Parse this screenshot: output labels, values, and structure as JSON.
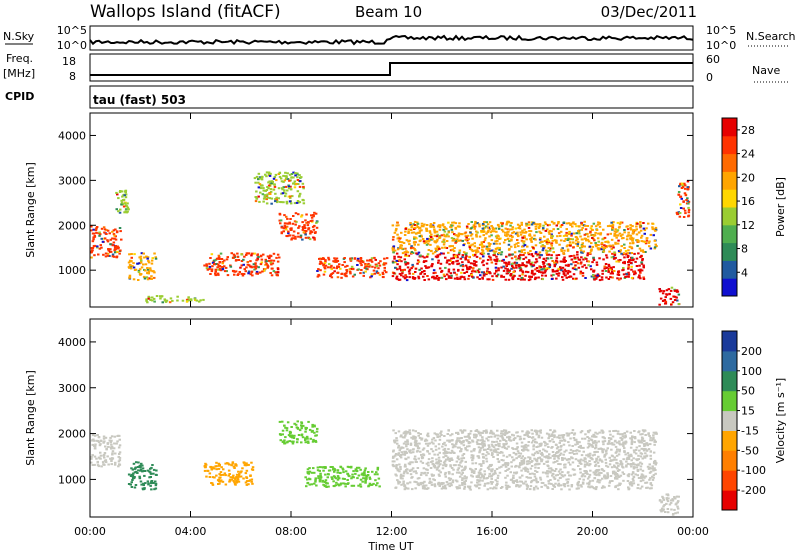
{
  "header": {
    "station": "Wallops Island (fitACF)",
    "beam": "Beam 10",
    "date": "03/Dec/2011"
  },
  "panels": {
    "nsky": {
      "label": "N.Sky",
      "tick_top": "10^5",
      "tick_bottom": "10^0",
      "right_label": "N.Search",
      "right_tick_top": "10^5",
      "right_tick_bottom": "10^0"
    },
    "freq": {
      "label_top": "Freq.",
      "label_units": "[MHz]",
      "tick_top": "18",
      "tick_bottom": "8",
      "right_label": "Nave",
      "right_tick_top": "60",
      "right_tick_bottom": "0"
    },
    "cpid": {
      "label": "CPID",
      "mode": "tau (fast) 503"
    }
  },
  "chart_data": [
    {
      "type": "heatmap",
      "title": "",
      "xlabel": "Time UT",
      "ylabel": "Slant Range [km]",
      "xlim": [
        0,
        24
      ],
      "ylim": [
        180,
        4500
      ],
      "x_ticks": [
        "00:00",
        "04:00",
        "08:00",
        "12:00",
        "16:00",
        "20:00",
        "00:00"
      ],
      "y_ticks": [
        "1000",
        "2000",
        "3000",
        "4000"
      ],
      "colorbar": {
        "label": "Power [dB]",
        "ticks": [
          "4",
          "8",
          "12",
          "16",
          "20",
          "24",
          "28"
        ],
        "range": [
          0,
          30
        ],
        "colors": [
          "#1010d0",
          "#205aa0",
          "#2e8b57",
          "#4fae4f",
          "#9acd32",
          "#ffd700",
          "#ffa500",
          "#ff6a00",
          "#ff3300",
          "#e60000"
        ]
      },
      "regions": [
        {
          "t0": 0.0,
          "t1": 1.2,
          "r0": 1300,
          "r1": 2000,
          "value": 24
        },
        {
          "t0": 1.0,
          "t1": 1.5,
          "r0": 2300,
          "r1": 2800,
          "value": 12
        },
        {
          "t0": 1.5,
          "t1": 2.6,
          "r0": 800,
          "r1": 1400,
          "value": 20
        },
        {
          "t0": 2.2,
          "t1": 4.5,
          "r0": 300,
          "r1": 450,
          "value": 14
        },
        {
          "t0": 4.5,
          "t1": 7.5,
          "r0": 900,
          "r1": 1400,
          "value": 25
        },
        {
          "t0": 6.5,
          "t1": 8.5,
          "r0": 2500,
          "r1": 3200,
          "value": 12
        },
        {
          "t0": 7.5,
          "t1": 9.0,
          "r0": 1700,
          "r1": 2300,
          "value": 24
        },
        {
          "t0": 9.0,
          "t1": 11.8,
          "r0": 850,
          "r1": 1300,
          "value": 24
        },
        {
          "t0": 12.0,
          "t1": 22.0,
          "r0": 800,
          "r1": 1400,
          "value": 28
        },
        {
          "t0": 12.0,
          "t1": 22.5,
          "r0": 1400,
          "r1": 2100,
          "value": 18
        },
        {
          "t0": 22.6,
          "t1": 23.4,
          "r0": 250,
          "r1": 650,
          "value": 28
        },
        {
          "t0": 23.3,
          "t1": 23.8,
          "r0": 2200,
          "r1": 3000,
          "value": 24
        }
      ]
    },
    {
      "type": "heatmap",
      "title": "",
      "xlabel": "Time UT",
      "ylabel": "Slant Range [km]",
      "xlim": [
        0,
        24
      ],
      "ylim": [
        180,
        4500
      ],
      "x_ticks": [
        "00:00",
        "04:00",
        "08:00",
        "12:00",
        "16:00",
        "20:00",
        "00:00"
      ],
      "y_ticks": [
        "1000",
        "2000",
        "3000",
        "4000"
      ],
      "colorbar": {
        "label": "Velocity [m s⁻¹]",
        "ticks": [
          "200",
          "100",
          "50",
          "15",
          "-15",
          "-50",
          "-100",
          "-200"
        ],
        "colors": [
          "#1a3a9a",
          "#2e6aa0",
          "#2e8b57",
          "#66cc33",
          "#c8c8c0",
          "#ffa500",
          "#ff7f00",
          "#ff4500",
          "#e60000"
        ]
      },
      "regions": [
        {
          "t0": 0.0,
          "t1": 1.2,
          "r0": 1300,
          "r1": 2000,
          "value": "~0"
        },
        {
          "t0": 1.5,
          "t1": 2.6,
          "r0": 800,
          "r1": 1400,
          "value": 50
        },
        {
          "t0": 4.5,
          "t1": 6.5,
          "r0": 900,
          "r1": 1400,
          "value": -50
        },
        {
          "t0": 7.5,
          "t1": 9.0,
          "r0": 1800,
          "r1": 2300,
          "value": 15
        },
        {
          "t0": 8.5,
          "t1": 11.5,
          "r0": 850,
          "r1": 1300,
          "value": 15
        },
        {
          "t0": 12.0,
          "t1": 22.5,
          "r0": 800,
          "r1": 2100,
          "value": "~0"
        },
        {
          "t0": 22.6,
          "t1": 23.4,
          "r0": 250,
          "r1": 700,
          "value": "~0"
        }
      ]
    }
  ]
}
